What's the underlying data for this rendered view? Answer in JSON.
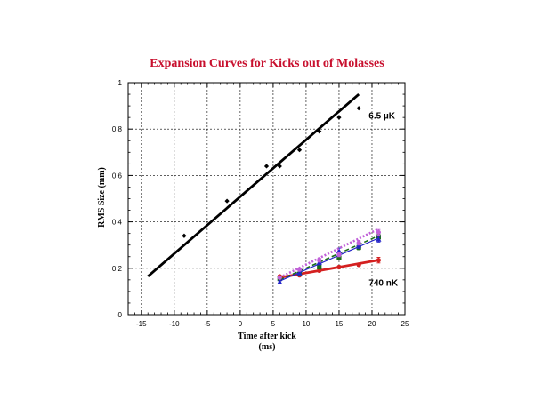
{
  "chart_data": {
    "type": "scatter",
    "title": "Expansion Curves for Kicks out of Molasses",
    "xlabel_line1": "Time after kick",
    "xlabel_line2": "(ms)",
    "ylabel": "RMS Size (mm)",
    "xlim": [
      -17,
      25
    ],
    "ylim": [
      0,
      1
    ],
    "x_ticks": [
      -15,
      -10,
      -5,
      0,
      5,
      10,
      15,
      20,
      25
    ],
    "y_ticks": [
      0,
      0.2,
      0.4,
      0.6,
      0.8,
      1
    ],
    "y_tick_labels": [
      "0",
      "0.2",
      "0.4",
      "0.6",
      "0.8",
      "1"
    ],
    "grid": true,
    "annotations": [
      {
        "text": "6.5 µK",
        "x": 19.5,
        "y": 0.845
      },
      {
        "text": "740 nK",
        "x": 19.5,
        "y": 0.125
      }
    ],
    "series": [
      {
        "color": "#000000",
        "marker": "diamond",
        "points": [
          [
            -8.5,
            0.34
          ],
          [
            -2,
            0.49
          ],
          [
            4,
            0.64
          ],
          [
            6,
            0.64
          ],
          [
            9,
            0.71
          ],
          [
            12,
            0.79
          ],
          [
            15,
            0.85
          ],
          [
            18,
            0.89
          ]
        ],
        "fit": [
          [
            -14,
            0.165
          ],
          [
            18,
            0.95
          ]
        ],
        "fit_style": "solid-thick"
      },
      {
        "color": "#d42020",
        "marker": "circle",
        "points": [
          [
            6,
            0.165
          ],
          [
            9,
            0.17
          ],
          [
            12,
            0.19
          ],
          [
            15,
            0.205
          ],
          [
            18,
            0.215
          ],
          [
            21,
            0.235
          ]
        ],
        "errors": [
          0.005,
          0.005,
          0.005,
          0.006,
          0.006,
          0.012
        ],
        "fit": [
          [
            6,
            0.16
          ],
          [
            21,
            0.235
          ]
        ],
        "fit_style": "solid-thick"
      },
      {
        "color": "#1a6b1a",
        "marker": "square",
        "points": [
          [
            6,
            0.155
          ],
          [
            9,
            0.175
          ],
          [
            12,
            0.205
          ],
          [
            15,
            0.245
          ],
          [
            18,
            0.29
          ],
          [
            21,
            0.335
          ]
        ],
        "errors": [
          0.005,
          0.006,
          0.008,
          0.008,
          0.01,
          0.012
        ],
        "fit": [
          [
            6,
            0.15
          ],
          [
            21,
            0.34
          ]
        ],
        "fit_style": "dashed"
      },
      {
        "color": "#2424c8",
        "marker": "triangle",
        "points": [
          [
            6,
            0.14
          ],
          [
            9,
            0.18
          ],
          [
            12,
            0.225
          ],
          [
            15,
            0.275
          ],
          [
            18,
            0.3
          ],
          [
            21,
            0.325
          ]
        ],
        "errors": [
          0.006,
          0.008,
          0.01,
          0.012,
          0.014,
          0.012
        ],
        "fit": [
          [
            6,
            0.145
          ],
          [
            21,
            0.33
          ]
        ],
        "fit_style": "solid-thin"
      },
      {
        "color": "#c060d8",
        "marker": "circle",
        "points": [
          [
            6,
            0.16
          ],
          [
            9,
            0.195
          ],
          [
            12,
            0.235
          ],
          [
            15,
            0.26
          ],
          [
            18,
            0.31
          ],
          [
            21,
            0.355
          ]
        ],
        "errors": [
          0.004,
          0.006,
          0.008,
          0.01,
          0.01,
          0.012
        ],
        "fit": [
          [
            6,
            0.16
          ],
          [
            21,
            0.37
          ]
        ],
        "fit_style": "dotted-thick"
      }
    ]
  }
}
